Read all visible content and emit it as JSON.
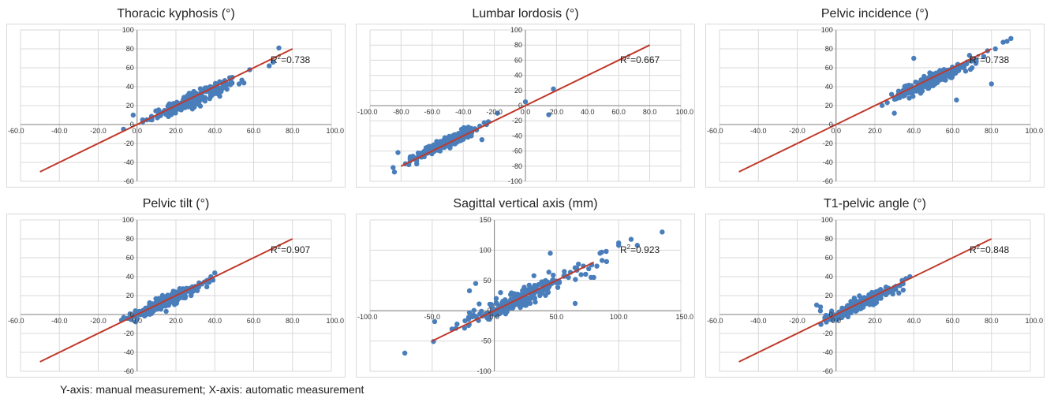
{
  "chart_data": [
    {
      "type": "scatter",
      "title": "Thoracic kyphosis (°)",
      "r2_label": "R",
      "r2_value": "=0.738",
      "xlim": [
        -60,
        100
      ],
      "ylim": [
        -60,
        100
      ],
      "xticks": [
        "-60.0",
        "-40.0",
        "-20.0",
        "0.0",
        "20.0",
        "40.0",
        "60.0",
        "80.0",
        "100.0"
      ],
      "yticks": [
        "100",
        "80",
        "60",
        "40",
        "20",
        "0",
        "-20",
        "-40",
        "-60"
      ],
      "line": [
        [
          -50,
          -50
        ],
        [
          80,
          80
        ]
      ],
      "cluster": {
        "cx": 28,
        "cy": 26,
        "sx": 10,
        "sy": 10,
        "n": 240
      },
      "extra": [
        [
          73,
          81
        ],
        [
          70,
          66
        ],
        [
          68,
          62
        ],
        [
          58,
          58
        ],
        [
          55,
          44
        ],
        [
          48,
          42
        ],
        [
          3,
          3
        ],
        [
          5,
          5
        ],
        [
          -2,
          10
        ]
      ],
      "grid": true
    },
    {
      "type": "scatter",
      "title": "Lumbar lordosis (°)",
      "r2_label": "R",
      "r2_value": "=0.667",
      "xlim": [
        -100,
        100
      ],
      "ylim": [
        -100,
        100
      ],
      "xticks": [
        "-100.0",
        "-80.0",
        "-60.0",
        "-40.0",
        "-20.0",
        "0.0",
        "20.0",
        "40.0",
        "60.0",
        "80.0",
        "100.0"
      ],
      "yticks": [
        "100",
        "80",
        "60",
        "40",
        "20",
        "0",
        "-20",
        "-40",
        "-60",
        "-80",
        "-100"
      ],
      "line": [
        [
          -80,
          -80
        ],
        [
          80,
          80
        ]
      ],
      "cluster": {
        "cx": -52,
        "cy": -50,
        "sx": 10,
        "sy": 10,
        "n": 230
      },
      "extra": [
        [
          18,
          22
        ],
        [
          0,
          5
        ],
        [
          15,
          -12
        ],
        [
          -18,
          -10
        ],
        [
          -25,
          -25
        ],
        [
          -82,
          -62
        ],
        [
          -75,
          -78
        ],
        [
          -70,
          -73
        ],
        [
          -28,
          -45
        ]
      ],
      "grid": true
    },
    {
      "type": "scatter",
      "title": "Pelvic incidence (°)",
      "r2_label": "R",
      "r2_value": "=0.738",
      "xlim": [
        -60,
        100
      ],
      "ylim": [
        -60,
        100
      ],
      "xticks": [
        "-60.0",
        "-40.0",
        "-20.0",
        "0.0",
        "20.0",
        "40.0",
        "60.0",
        "80.0",
        "100.0"
      ],
      "yticks": [
        "100",
        "80",
        "60",
        "40",
        "20",
        "0",
        "-20",
        "-40",
        "-60"
      ],
      "line": [
        [
          -50,
          -50
        ],
        [
          80,
          80
        ]
      ],
      "cluster": {
        "cx": 50,
        "cy": 47,
        "sx": 10,
        "sy": 10,
        "n": 240
      },
      "extra": [
        [
          88,
          88
        ],
        [
          90,
          91
        ],
        [
          86,
          87
        ],
        [
          82,
          80
        ],
        [
          78,
          78
        ],
        [
          76,
          72
        ],
        [
          70,
          60
        ],
        [
          40,
          70
        ],
        [
          30,
          12
        ],
        [
          62,
          26
        ],
        [
          80,
          43
        ]
      ],
      "grid": true
    },
    {
      "type": "scatter",
      "title": "Pelvic tilt (°)",
      "r2_label": "R",
      "r2_value": "=0.907",
      "xlim": [
        -60,
        100
      ],
      "ylim": [
        -60,
        100
      ],
      "xticks": [
        "-60.0",
        "-40.0",
        "-20.0",
        "0.0",
        "20.0",
        "40.0",
        "60.0",
        "80.0",
        "100.0"
      ],
      "yticks": [
        "100",
        "80",
        "60",
        "40",
        "20",
        "0",
        "-20",
        "-40",
        "-60"
      ],
      "line": [
        [
          -50,
          -50
        ],
        [
          80,
          80
        ]
      ],
      "cluster": {
        "cx": 14,
        "cy": 13,
        "sx": 9,
        "sy": 9,
        "n": 240
      },
      "extra": [
        [
          40,
          44
        ],
        [
          38,
          40
        ],
        [
          36,
          36
        ],
        [
          -8,
          -6
        ],
        [
          -5,
          -4
        ],
        [
          32,
          33
        ]
      ],
      "grid": true
    },
    {
      "type": "scatter",
      "title": "Sagittal vertical axis (mm)",
      "r2_label": "R",
      "r2_value": "=0.923",
      "xlim": [
        -100,
        150
      ],
      "ylim": [
        -100,
        150
      ],
      "xticks": [
        "-100.0",
        "-50.0",
        "0.0",
        "50.0",
        "100.0",
        "150.0"
      ],
      "yticks": [
        "150",
        "100",
        "50",
        "0",
        "-50",
        "-100"
      ],
      "line": [
        [
          -50,
          -50
        ],
        [
          80,
          80
        ]
      ],
      "cluster": {
        "cx": 20,
        "cy": 20,
        "sx": 24,
        "sy": 24,
        "n": 240
      },
      "extra": [
        [
          -72,
          -70
        ],
        [
          135,
          130
        ],
        [
          110,
          118
        ],
        [
          100,
          112
        ],
        [
          100,
          108
        ],
        [
          115,
          108
        ],
        [
          90,
          98
        ],
        [
          85,
          95
        ],
        [
          45,
          95
        ],
        [
          65,
          12
        ],
        [
          80,
          55
        ],
        [
          -48,
          -18
        ],
        [
          -15,
          45
        ],
        [
          -20,
          33
        ],
        [
          5,
          30
        ],
        [
          -30,
          -22
        ]
      ],
      "grid": true
    },
    {
      "type": "scatter",
      "title": "T1-pelvic angle (°)",
      "r2_label": "R",
      "r2_value": "=0.848",
      "xlim": [
        -60,
        100
      ],
      "ylim": [
        -60,
        100
      ],
      "xticks": [
        "-60.0",
        "-40.0",
        "-20.0",
        "0.0",
        "20.0",
        "40.0",
        "60.0",
        "80.0",
        "100.0"
      ],
      "yticks": [
        "100",
        "80",
        "60",
        "40",
        "20",
        "0",
        "-20",
        "-40",
        "-60"
      ],
      "line": [
        [
          -50,
          -50
        ],
        [
          80,
          80
        ]
      ],
      "cluster": {
        "cx": 12,
        "cy": 11,
        "sx": 9,
        "sy": 9,
        "n": 230
      },
      "extra": [
        [
          38,
          40
        ],
        [
          36,
          38
        ],
        [
          34,
          36
        ],
        [
          -10,
          10
        ],
        [
          -8,
          8
        ],
        [
          -5,
          -8
        ]
      ],
      "grid": true
    }
  ],
  "footnote": "Y-axis: manual measurement; X-axis: automatic measurement",
  "colors": {
    "points": "#4a7ebb",
    "line": "#c0392b",
    "grid": "#d9d9d9",
    "axis": "#7f7f7f"
  }
}
